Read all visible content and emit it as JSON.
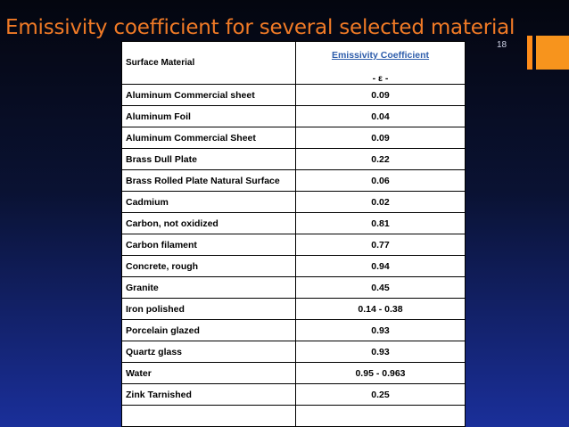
{
  "slide": {
    "title": "Emissivity coefficient for several selected material",
    "number": "18",
    "accent_color": "#f07a26"
  },
  "table": {
    "header": {
      "material": "Surface Material",
      "coefficient": "Emissivity Coefficient",
      "symbol": "- ε -"
    },
    "rows": [
      {
        "material": "Aluminum Commercial sheet",
        "value": "0.09"
      },
      {
        "material": "Aluminum Foil",
        "value": "0.04"
      },
      {
        "material": "Aluminum Commercial Sheet",
        "value": "0.09"
      },
      {
        "material": "Brass Dull Plate",
        "value": "0.22"
      },
      {
        "material": "Brass Rolled Plate Natural Surface",
        "value": "0.06"
      },
      {
        "material": "Cadmium",
        "value": "0.02"
      },
      {
        "material": "Carbon, not oxidized",
        "value": "0.81"
      },
      {
        "material": "Carbon filament",
        "value": "0.77"
      },
      {
        "material": "Concrete, rough",
        "value": "0.94"
      },
      {
        "material": "Granite",
        "value": "0.45"
      },
      {
        "material": "Iron polished",
        "value": "0.14 - 0.38"
      },
      {
        "material": "Porcelain glazed",
        "value": "0.93"
      },
      {
        "material": "Quartz glass",
        "value": "0.93"
      },
      {
        "material": "Water",
        "value": "0.95 - 0.963"
      },
      {
        "material": "Zink Tarnished",
        "value": "0.25"
      },
      {
        "material": "",
        "value": ""
      }
    ]
  }
}
